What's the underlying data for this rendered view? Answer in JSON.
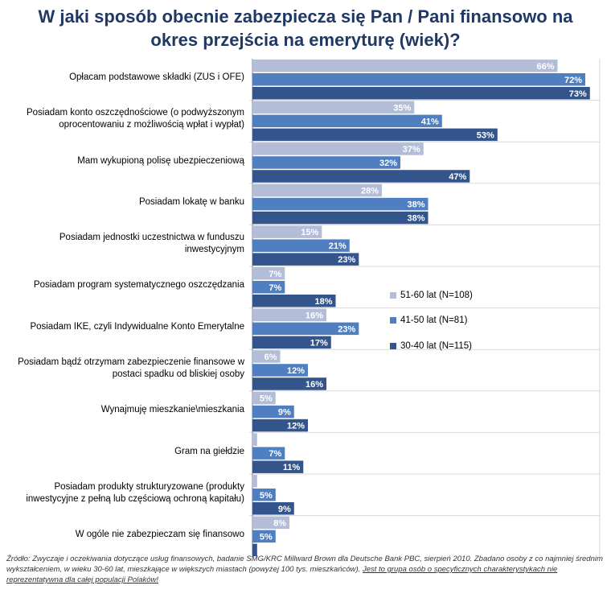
{
  "title": {
    "line1": "W jaki sposób obecnie zabezpiecza się Pan / Pani finansowo na",
    "line2": "okres przejścia na emeryturę (wiek)?"
  },
  "chart_data": {
    "type": "bar",
    "orientation": "horizontal",
    "title": "W jaki sposób obecnie zabezpiecza się Pan / Pani finansowo na okres przejścia na emeryturę (wiek)?",
    "xlim": [
      0,
      80
    ],
    "legend_position": "right",
    "categories": [
      "Opłacam podstawowe składki (ZUS i OFE)",
      "Posiadam konto oszczędnościowe (o podwyższonym oprocentowaniu z możliwością wpłat i wypłat)",
      "Mam wykupioną polisę ubezpieczeniową",
      "Posiadam lokatę w banku",
      "Posiadam jednostki uczestnictwa w funduszu inwestycyjnym",
      "Posiadam program systematycznego oszczędzania",
      "Posiadam IKE, czyli Indywidualne Konto Emerytalne",
      "Posiadam bądź otrzymam zabezpieczenie finansowe w postaci spadku od bliskiej osoby",
      "Wynajmuję mieszkanie\\mieszkania",
      "Gram na giełdzie",
      "Posiadam produkty strukturyzowane (produkty inwestycyjne z pełną lub częściową ochroną kapitału)",
      "W ogóle nie zabezpieczam się finansowo"
    ],
    "series": [
      {
        "name": "51-60 lat (N=108)",
        "color": "#b3bdd8",
        "values": [
          66,
          35,
          37,
          28,
          15,
          7,
          16,
          6,
          5,
          1,
          1,
          8
        ],
        "labels": [
          "66%",
          "35%",
          "37%",
          "28%",
          "15%",
          "7%",
          "16%",
          "6%",
          "5%",
          "",
          "",
          "8%"
        ]
      },
      {
        "name": "41-50 lat (N=81)",
        "color": "#4f7fc0",
        "values": [
          72,
          41,
          32,
          38,
          21,
          7,
          23,
          12,
          9,
          7,
          5,
          5
        ],
        "labels": [
          "72%",
          "41%",
          "32%",
          "38%",
          "21%",
          "7%",
          "23%",
          "12%",
          "9%",
          "7%",
          "5%",
          "5%"
        ]
      },
      {
        "name": "30-40 lat (N=115)",
        "color": "#34558c",
        "values": [
          73,
          53,
          47,
          38,
          23,
          18,
          17,
          16,
          12,
          11,
          9,
          1
        ],
        "labels": [
          "73%",
          "53%",
          "47%",
          "38%",
          "23%",
          "18%",
          "17%",
          "16%",
          "12%",
          "11%",
          "9%",
          ""
        ]
      }
    ]
  },
  "category_lines": [
    [
      "Opłacam  podstawowe  składki (ZUS i OFE)"
    ],
    [
      "Posiadam konto  oszczędnościowe (o  podwyższonym",
      "oprocentowaniu z możliwością  wpłat i  wypłat)"
    ],
    [
      "Mam  wykupioną  polisę  ubezpieczeniową"
    ],
    [
      "Posiadam  lokatę  w  banku"
    ],
    [
      "Posiadam  jednostki  uczestnictwa  w  funduszu",
      "inwestycyjnym"
    ],
    [
      "Posiadam  program  systematycznego  oszczędzania"
    ],
    [
      "Posiadam  IKE,  czyli  Indywidualne  Konto  Emerytalne"
    ],
    [
      "Posiadam  bądź  otrzymam  zabezpieczenie  finansowe  w",
      "postaci  spadku  od  bliskiej  osoby"
    ],
    [
      "Wynajmuję  mieszkanie\\mieszkania"
    ],
    [
      "Gram  na  giełdzie"
    ],
    [
      "Posiadam  produkty  strukturyzowane  (produkty",
      "inwestycyjne z pełną lub częściową ochroną kapitału)"
    ],
    [
      "W  ogóle  nie  zabezpieczam  się  finansowo"
    ]
  ],
  "source": {
    "text": "Źródło: Zwyczaje i oczekiwania dotyczące usług finansowych, badanie SMG/KRC Millward Brown dla Deutsche Bank PBC, sierpień 2010. Zbadano osoby z co najmniej średnim wykształceniem, w wieku 30-60 lat, mieszkające w większych miastach (powyżej 100 tys. mieszkańców). ",
    "underlined": "Jest to grupa osób o specyficznych charakterystykach nie reprezentatywna dla całej populacji Polaków!"
  }
}
